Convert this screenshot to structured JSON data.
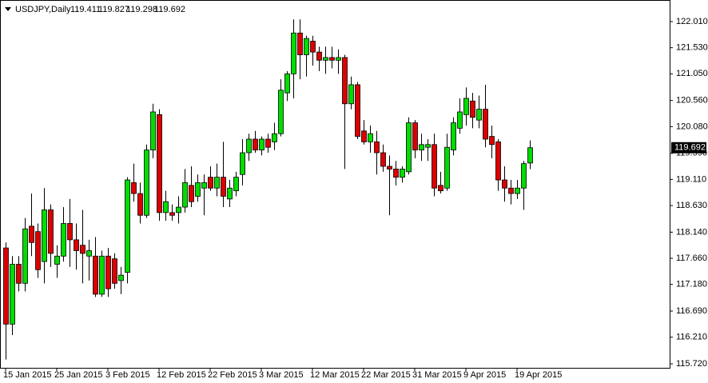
{
  "chart_data": {
    "type": "candlestick",
    "title": "USDJPY,Daily",
    "up_color": "#00dd00",
    "down_color": "#dd0000",
    "categories": [
      "15 Jan 2015",
      null,
      null,
      null,
      null,
      null,
      null,
      null,
      "25 Jan 2015",
      null,
      null,
      null,
      null,
      null,
      null,
      null,
      "3 Feb 2015",
      null,
      null,
      null,
      null,
      null,
      null,
      null,
      "12 Feb 2015",
      null,
      null,
      null,
      null,
      null,
      null,
      null,
      "22 Feb 2015",
      null,
      null,
      null,
      null,
      null,
      null,
      null,
      "3 Mar 2015",
      null,
      null,
      null,
      null,
      null,
      null,
      null,
      "12 Mar 2015",
      null,
      null,
      null,
      null,
      null,
      null,
      null,
      "22 Mar 2015",
      null,
      null,
      null,
      null,
      null,
      null,
      null,
      "31 Mar 2015",
      null,
      null,
      null,
      null,
      null,
      null,
      null,
      "9 Apr 2015",
      null,
      null,
      null,
      null,
      null,
      null,
      null,
      "19 Apr 2015",
      null,
      null
    ],
    "open": [
      117.85,
      116.45,
      117.55,
      117.2,
      118.25,
      118.15,
      117.6,
      118.55,
      117.55,
      117.7,
      118.3,
      118.0,
      117.9,
      117.7,
      117.7,
      117.0,
      117.7,
      117.65,
      117.25,
      117.4,
      119.05,
      118.85,
      118.45,
      119.65,
      120.3,
      118.5,
      118.5,
      118.5,
      118.6,
      119.0,
      118.8,
      118.95,
      119.15,
      118.95,
      119.15,
      118.75,
      118.9,
      119.2,
      119.6,
      119.85,
      119.65,
      119.85,
      119.8,
      119.95,
      120.7,
      121.05,
      121.8,
      121.4,
      121.65,
      121.45,
      121.3,
      121.35,
      121.3,
      121.35,
      120.5,
      120.85,
      120.0,
      119.8,
      119.8,
      119.6,
      119.35,
      119.3,
      119.15,
      119.25,
      120.15,
      119.65,
      119.7,
      119.75,
      119.0,
      118.95,
      119.65,
      120.05,
      120.3,
      120.55,
      120.2,
      120.4,
      119.9,
      119.8,
      119.1,
      118.95,
      118.85,
      118.95,
      119.411
    ],
    "high": [
      117.95,
      117.7,
      117.7,
      118.4,
      118.85,
      118.3,
      118.95,
      118.65,
      117.9,
      118.6,
      118.75,
      118.3,
      118.55,
      118.0,
      118.05,
      117.8,
      117.85,
      117.75,
      117.5,
      119.15,
      119.4,
      119.05,
      119.75,
      120.5,
      120.4,
      118.9,
      118.65,
      118.8,
      119.3,
      119.35,
      119.2,
      119.2,
      119.35,
      119.4,
      119.8,
      119.1,
      119.25,
      119.85,
      119.95,
      120.0,
      119.9,
      119.95,
      120.15,
      120.95,
      121.1,
      122.05,
      122.05,
      121.75,
      121.75,
      121.55,
      121.55,
      121.55,
      121.5,
      121.4,
      121.0,
      120.9,
      120.2,
      120.1,
      120.0,
      119.75,
      119.55,
      119.45,
      119.35,
      120.25,
      120.2,
      119.95,
      119.85,
      119.95,
      119.25,
      119.95,
      120.25,
      120.6,
      120.8,
      120.7,
      120.65,
      120.85,
      120.1,
      119.85,
      119.35,
      119.1,
      119.1,
      119.45,
      119.827
    ],
    "low": [
      115.8,
      116.25,
      117.05,
      117.05,
      117.7,
      117.3,
      117.2,
      117.5,
      117.3,
      117.6,
      117.5,
      117.45,
      117.2,
      117.25,
      116.95,
      116.95,
      116.95,
      117.1,
      117.0,
      117.2,
      118.7,
      118.3,
      118.4,
      119.5,
      118.35,
      118.35,
      118.35,
      118.3,
      118.5,
      118.6,
      118.7,
      118.45,
      118.9,
      118.8,
      118.6,
      118.6,
      118.8,
      119.0,
      119.45,
      119.6,
      119.55,
      119.6,
      119.65,
      119.9,
      120.55,
      120.6,
      120.95,
      121.0,
      121.2,
      121.1,
      121.05,
      121.15,
      121.05,
      119.3,
      120.4,
      119.85,
      119.75,
      119.6,
      119.2,
      119.25,
      118.45,
      119.0,
      119.05,
      119.2,
      119.5,
      119.45,
      119.45,
      118.8,
      118.85,
      118.9,
      119.55,
      119.95,
      120.1,
      120.05,
      120.05,
      119.7,
      119.5,
      118.9,
      118.7,
      118.65,
      118.75,
      118.55,
      119.298
    ],
    "close": [
      116.45,
      117.55,
      117.2,
      118.2,
      117.95,
      117.45,
      118.55,
      117.75,
      117.7,
      118.3,
      118.0,
      117.8,
      117.75,
      117.8,
      117.0,
      117.7,
      117.1,
      117.2,
      117.35,
      119.1,
      118.85,
      118.45,
      119.65,
      120.35,
      118.5,
      118.7,
      118.45,
      118.6,
      119.05,
      118.7,
      119.05,
      119.05,
      118.95,
      119.15,
      118.8,
      118.95,
      119.15,
      119.6,
      119.85,
      119.65,
      119.85,
      119.7,
      119.95,
      120.75,
      121.05,
      121.8,
      121.4,
      121.7,
      121.45,
      121.3,
      121.35,
      121.3,
      121.35,
      120.5,
      120.85,
      119.9,
      119.8,
      119.95,
      119.6,
      119.35,
      119.3,
      119.15,
      119.3,
      120.15,
      119.65,
      119.75,
      119.75,
      118.95,
      118.9,
      119.7,
      120.15,
      120.35,
      120.6,
      120.25,
      120.4,
      119.85,
      119.75,
      119.1,
      118.95,
      118.85,
      118.95,
      119.4,
      119.692
    ],
    "ylim": [
      115.647,
      122.407
    ],
    "yticks": [
      {
        "value": 122.01,
        "label": "122.010"
      },
      {
        "value": 121.53,
        "label": "121.530"
      },
      {
        "value": 121.05,
        "label": "121.050"
      },
      {
        "value": 120.56,
        "label": "120.560"
      },
      {
        "value": 120.08,
        "label": "120.080"
      },
      {
        "value": 119.59,
        "label": "119.590"
      },
      {
        "value": 119.11,
        "label": "119.110"
      },
      {
        "value": 118.63,
        "label": "118.630"
      },
      {
        "value": 118.14,
        "label": "118.140"
      },
      {
        "value": 117.66,
        "label": "117.660"
      },
      {
        "value": 117.18,
        "label": "117.180"
      },
      {
        "value": 116.69,
        "label": "116.690"
      },
      {
        "value": 116.21,
        "label": "116.210"
      },
      {
        "value": 115.72,
        "label": "115.720"
      }
    ]
  }
}
